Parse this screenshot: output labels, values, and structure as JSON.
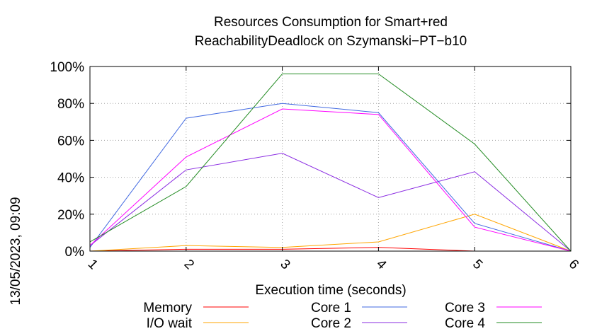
{
  "chart_data": {
    "type": "line",
    "title_line1": "Resources Consumption for Smart+red",
    "title_line2": "ReachabilityDeadlock on Szymanski−PT−b10",
    "xlabel": "Execution time (seconds)",
    "ylabel": "",
    "side_label": "13/05/2023, 09:09",
    "x": [
      1,
      2,
      3,
      4,
      5,
      6
    ],
    "x_tick_labels": [
      "1",
      "2",
      "3",
      "4",
      "5",
      "6"
    ],
    "y_tick_labels": [
      "0%",
      "20%",
      "40%",
      "60%",
      "80%",
      "100%"
    ],
    "xlim": [
      1,
      6
    ],
    "ylim": [
      0,
      100
    ],
    "grid": true,
    "legend_position": "bottom",
    "series": [
      {
        "name": "Memory",
        "color": "#ff0000",
        "values": [
          0,
          1,
          1,
          2,
          0,
          0
        ]
      },
      {
        "name": "I/O wait",
        "color": "#ffa500",
        "values": [
          0,
          3,
          2,
          5,
          20,
          0
        ]
      },
      {
        "name": "Core 1",
        "color": "#4169e1",
        "values": [
          2,
          72,
          80,
          75,
          15,
          0
        ]
      },
      {
        "name": "Core 2",
        "color": "#8a2be2",
        "values": [
          3,
          44,
          53,
          29,
          43,
          0
        ]
      },
      {
        "name": "Core 3",
        "color": "#ff00ff",
        "values": [
          3,
          51,
          77,
          74,
          13,
          0
        ]
      },
      {
        "name": "Core 4",
        "color": "#228b22",
        "values": [
          5,
          35,
          96,
          96,
          58,
          0
        ]
      }
    ]
  }
}
